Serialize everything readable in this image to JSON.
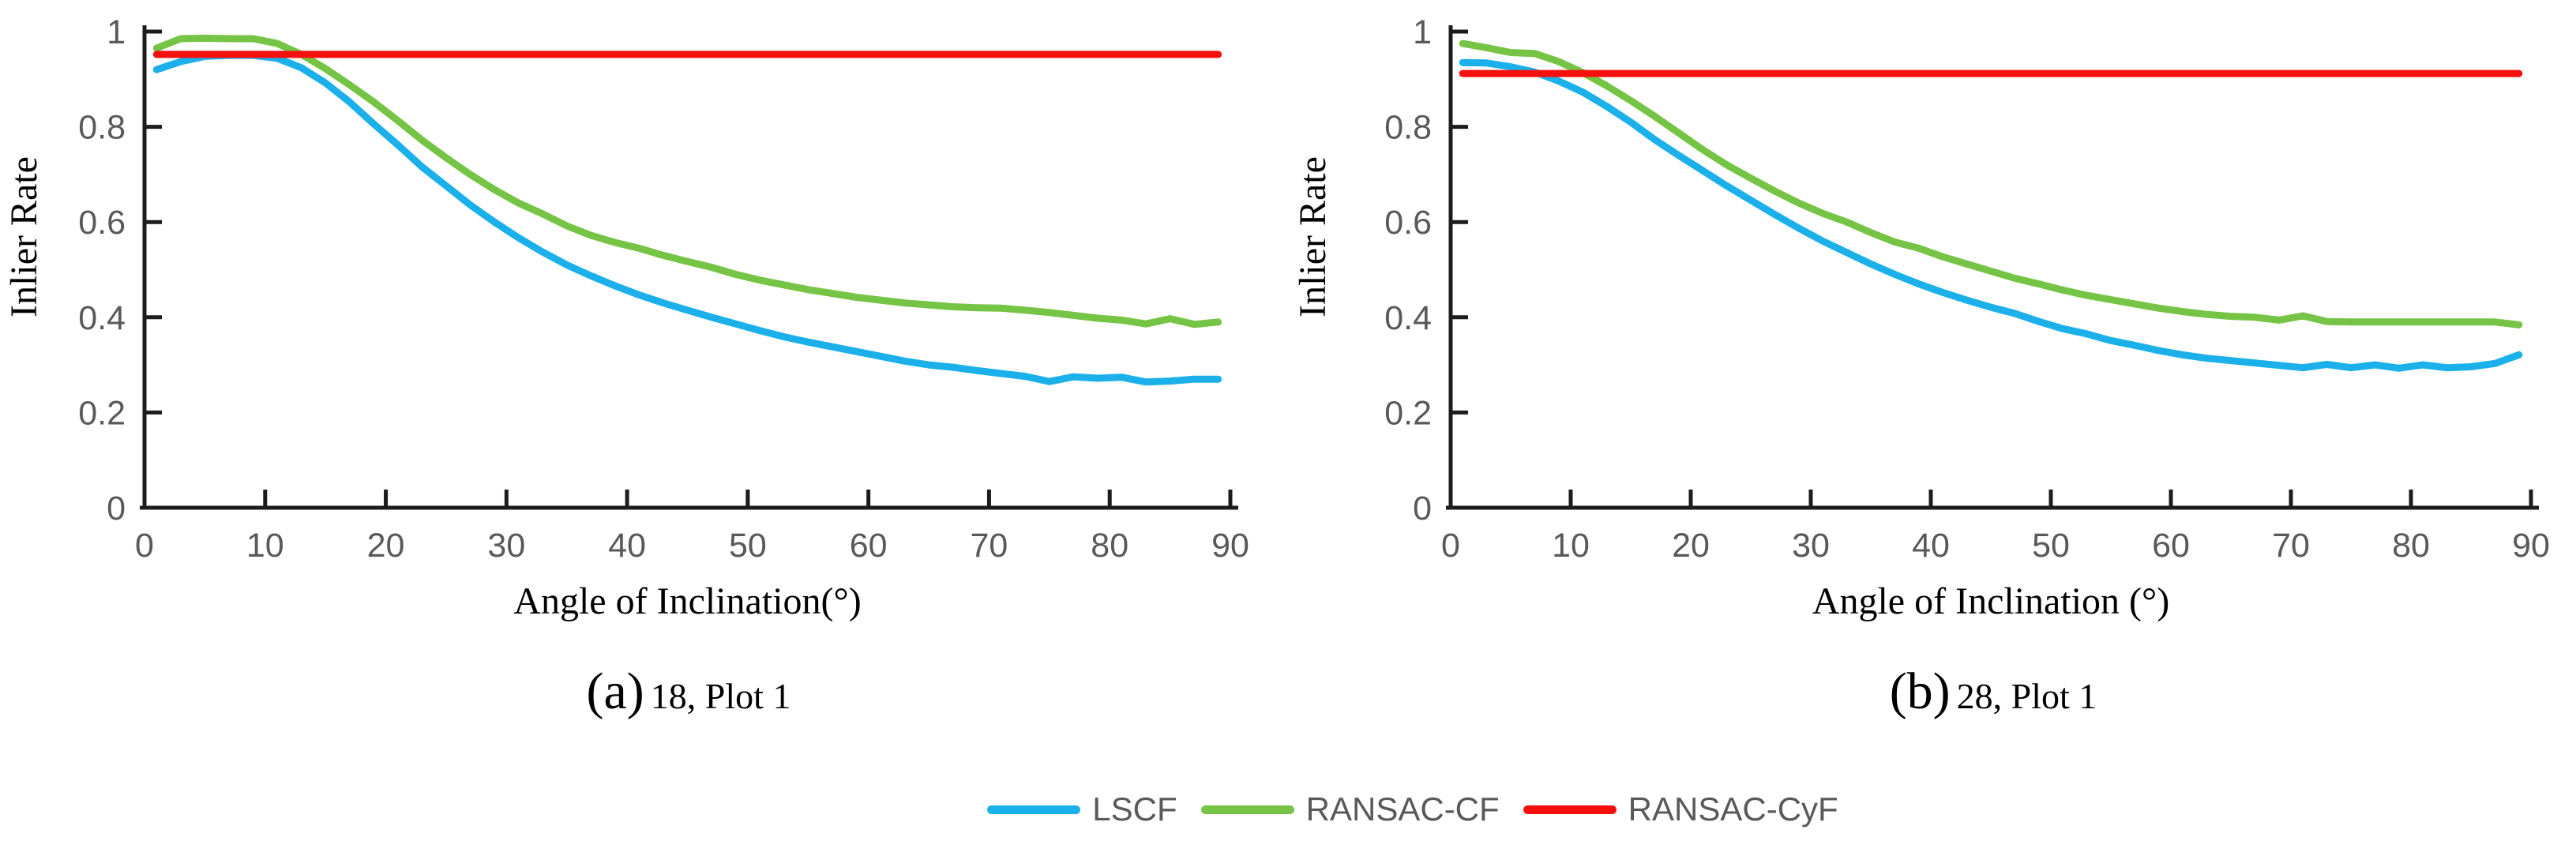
{
  "page": {
    "background": "#ffffff"
  },
  "colors": {
    "lscf": "#1CB0EB",
    "ransac_cf": "#76C445",
    "ransac_cyf": "#F5100E",
    "axis": "#1C1C1C",
    "tick_label": "#595959",
    "legend_text": "#595959",
    "title_text": "#000000"
  },
  "legend": {
    "items": [
      {
        "label": "LSCF",
        "color_key": "lscf"
      },
      {
        "label": "RANSAC-CF",
        "color_key": "ransac_cf"
      },
      {
        "label": "RANSAC-CyF",
        "color_key": "ransac_cyf"
      }
    ]
  },
  "captions": [
    {
      "tag": "(a)",
      "text": "18, Plot 1"
    },
    {
      "tag": "(b)",
      "text": "28, Plot 1"
    }
  ],
  "chart_data": [
    {
      "type": "line",
      "title": "(a) 18, Plot 1",
      "xlabel": "Angle of Inclination(°)",
      "ylabel": "Inlier Rate",
      "xlim": [
        0,
        90
      ],
      "ylim": [
        0,
        1
      ],
      "xticks": [
        0,
        10,
        20,
        30,
        40,
        50,
        60,
        70,
        80,
        90
      ],
      "yticks": [
        0,
        0.2,
        0.4,
        0.6,
        0.8,
        1
      ],
      "ytick_labels": [
        "0",
        "0.2",
        "0.4",
        "0.6",
        "0.8",
        "1"
      ],
      "grid": false,
      "legend_position": "shared-bottom",
      "series": [
        {
          "name": "RANSAC-CF",
          "color_key": "ransac_cf",
          "x": [
            1,
            3,
            5,
            7,
            9,
            11,
            13,
            15,
            17,
            19,
            21,
            23,
            25,
            27,
            29,
            31,
            33,
            35,
            37,
            39,
            41,
            43,
            45,
            47,
            49,
            51,
            53,
            55,
            57,
            59,
            61,
            63,
            65,
            67,
            69,
            71,
            73,
            75,
            77,
            79,
            81,
            83,
            85,
            87,
            89
          ],
          "y": [
            0.965,
            0.985,
            0.986,
            0.985,
            0.985,
            0.975,
            0.952,
            0.922,
            0.888,
            0.852,
            0.813,
            0.772,
            0.735,
            0.7,
            0.668,
            0.64,
            0.617,
            0.592,
            0.572,
            0.557,
            0.545,
            0.53,
            0.517,
            0.505,
            0.49,
            0.478,
            0.468,
            0.458,
            0.45,
            0.442,
            0.436,
            0.43,
            0.426,
            0.422,
            0.42,
            0.419,
            0.415,
            0.41,
            0.404,
            0.398,
            0.394,
            0.386,
            0.397,
            0.385,
            0.39
          ]
        },
        {
          "name": "LSCF",
          "color_key": "lscf",
          "x": [
            1,
            3,
            5,
            7,
            9,
            11,
            13,
            15,
            17,
            19,
            21,
            23,
            25,
            27,
            29,
            31,
            33,
            35,
            37,
            39,
            41,
            43,
            45,
            47,
            49,
            51,
            53,
            55,
            57,
            59,
            61,
            63,
            65,
            67,
            69,
            71,
            73,
            75,
            77,
            79,
            81,
            83,
            85,
            87,
            89
          ],
          "y": [
            0.92,
            0.937,
            0.948,
            0.95,
            0.95,
            0.944,
            0.924,
            0.892,
            0.852,
            0.806,
            0.762,
            0.716,
            0.676,
            0.636,
            0.6,
            0.567,
            0.537,
            0.51,
            0.487,
            0.466,
            0.447,
            0.43,
            0.415,
            0.4,
            0.386,
            0.372,
            0.359,
            0.348,
            0.338,
            0.328,
            0.318,
            0.308,
            0.3,
            0.295,
            0.288,
            0.282,
            0.276,
            0.265,
            0.275,
            0.272,
            0.274,
            0.264,
            0.266,
            0.27,
            0.27
          ]
        },
        {
          "name": "RANSAC-CyF",
          "color_key": "ransac_cyf",
          "x": [
            1,
            89
          ],
          "y": [
            0.952,
            0.952
          ]
        }
      ]
    },
    {
      "type": "line",
      "title": "(b) 28, Plot 1",
      "xlabel": "Angle of Inclination  (°)",
      "ylabel": "Inlier Rate",
      "xlim": [
        0,
        90
      ],
      "ylim": [
        0,
        1
      ],
      "xticks": [
        0,
        10,
        20,
        30,
        40,
        50,
        60,
        70,
        80,
        90
      ],
      "yticks": [
        0,
        0.2,
        0.4,
        0.6,
        0.8,
        1
      ],
      "ytick_labels": [
        "0",
        "0.2",
        "0.4",
        "0.6",
        "0.8",
        "1"
      ],
      "grid": false,
      "legend_position": "shared-bottom",
      "series": [
        {
          "name": "RANSAC-CF",
          "color_key": "ransac_cf",
          "x": [
            1,
            3,
            5,
            7,
            9,
            11,
            13,
            15,
            17,
            19,
            21,
            23,
            25,
            27,
            29,
            31,
            33,
            35,
            37,
            39,
            41,
            43,
            45,
            47,
            49,
            51,
            53,
            55,
            57,
            59,
            61,
            63,
            65,
            67,
            69,
            71,
            73,
            75,
            77,
            79,
            81,
            83,
            85,
            87,
            89
          ],
          "y": [
            0.975,
            0.966,
            0.956,
            0.954,
            0.937,
            0.914,
            0.886,
            0.855,
            0.822,
            0.787,
            0.752,
            0.72,
            0.692,
            0.665,
            0.64,
            0.618,
            0.6,
            0.578,
            0.558,
            0.545,
            0.527,
            0.512,
            0.497,
            0.482,
            0.47,
            0.457,
            0.446,
            0.437,
            0.428,
            0.419,
            0.412,
            0.406,
            0.402,
            0.4,
            0.394,
            0.403,
            0.391,
            0.39,
            0.39,
            0.39,
            0.39,
            0.39,
            0.39,
            0.39,
            0.384
          ]
        },
        {
          "name": "LSCF",
          "color_key": "lscf",
          "x": [
            1,
            3,
            5,
            7,
            9,
            11,
            13,
            15,
            17,
            19,
            21,
            23,
            25,
            27,
            29,
            31,
            33,
            35,
            37,
            39,
            41,
            43,
            45,
            47,
            49,
            51,
            53,
            55,
            57,
            59,
            61,
            63,
            65,
            67,
            69,
            71,
            73,
            75,
            77,
            79,
            81,
            83,
            85,
            87,
            89
          ],
          "y": [
            0.935,
            0.934,
            0.926,
            0.915,
            0.896,
            0.873,
            0.843,
            0.81,
            0.773,
            0.74,
            0.708,
            0.676,
            0.646,
            0.616,
            0.587,
            0.56,
            0.536,
            0.512,
            0.49,
            0.47,
            0.452,
            0.436,
            0.421,
            0.408,
            0.391,
            0.376,
            0.365,
            0.351,
            0.341,
            0.33,
            0.321,
            0.314,
            0.309,
            0.304,
            0.299,
            0.294,
            0.301,
            0.294,
            0.3,
            0.293,
            0.3,
            0.294,
            0.296,
            0.303,
            0.321
          ]
        },
        {
          "name": "RANSAC-CyF",
          "color_key": "ransac_cyf",
          "x": [
            1,
            89
          ],
          "y": [
            0.912,
            0.912
          ]
        }
      ]
    }
  ]
}
